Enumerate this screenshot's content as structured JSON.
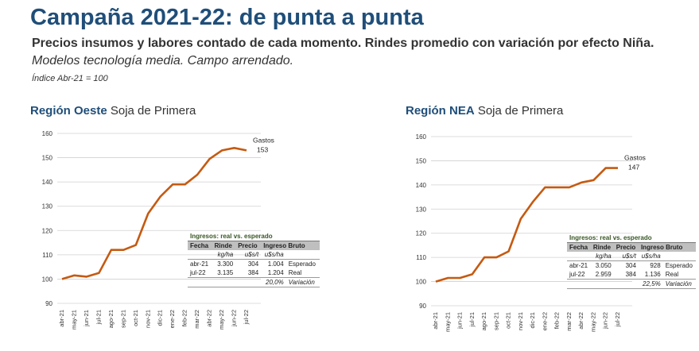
{
  "title": "Campaña 2021-22: de punta a punta",
  "subtitle": "Precios insumos y labores contado de cada momento. Rindes promedio con variación por efecto Niña.",
  "subtitle2": "Modelos tecnología media. Campo arrendado.",
  "index_note": "Índice Abr-21 = 100",
  "colors": {
    "title": "#1f4e79",
    "line": "#c55a11",
    "table_caption": "#375623",
    "table_header": "#bfbfbf"
  },
  "regions": [
    {
      "region_bold": "Región Oeste",
      "region_rest": " Soja de Primera",
      "table": {
        "caption": "Ingresos: real vs. esperado",
        "headers": [
          "Fecha",
          "Rinde",
          "Precio",
          "Ingreso Bruto"
        ],
        "units": [
          "",
          "kg/ha",
          "u$s/t",
          "u$s/ha"
        ],
        "rows": [
          [
            "abr-21",
            "3.300",
            "304",
            "1.004",
            "Esperado"
          ],
          [
            "jul-22",
            "3.135",
            "384",
            "1.204",
            "Real"
          ]
        ],
        "variation": [
          "20,0%",
          "Variación"
        ]
      }
    },
    {
      "region_bold": "Región NEA",
      "region_rest": " Soja de Primera",
      "table": {
        "caption": "Ingresos: real vs. esperado",
        "headers": [
          "Fecha",
          "Rinde",
          "Precio",
          "Ingreso Bruto"
        ],
        "units": [
          "",
          "kg/ha",
          "u$s/t",
          "u$s/ha"
        ],
        "rows": [
          [
            "abr-21",
            "3.050",
            "304",
            "928",
            "Esperado"
          ],
          [
            "jul-22",
            "2.959",
            "384",
            "1.136",
            "Real"
          ]
        ],
        "variation": [
          "22,5%",
          "Variación"
        ]
      }
    }
  ],
  "chart_data": [
    {
      "type": "line",
      "title": "Región Oeste Soja de Primera",
      "x": [
        "abr-21",
        "may-21",
        "jun-21",
        "jul-21",
        "ago-21",
        "sep-21",
        "oct-21",
        "nov-21",
        "dic-21",
        "ene-22",
        "feb-22",
        "mar-22",
        "abr-22",
        "may-22",
        "jun-22",
        "jul-22"
      ],
      "series": [
        {
          "name": "Gastos",
          "values": [
            100,
            101.5,
            101,
            102.5,
            112,
            112,
            114,
            127,
            134,
            139,
            139,
            143,
            149.5,
            153,
            154,
            153
          ]
        }
      ],
      "end_label": {
        "name": "Gastos",
        "value": "153"
      },
      "ylim": [
        90,
        160
      ],
      "yticks": [
        90,
        100,
        110,
        120,
        130,
        140,
        150,
        160
      ],
      "grid": true
    },
    {
      "type": "line",
      "title": "Región NEA Soja de Primera",
      "x": [
        "abr-21",
        "may-21",
        "jun-21",
        "jul-21",
        "ago-21",
        "sep-21",
        "oct-21",
        "nov-21",
        "dic-21",
        "ene-22",
        "feb-22",
        "mar-22",
        "abr-22",
        "may-22",
        "jun-22",
        "jul-22"
      ],
      "series": [
        {
          "name": "Gastos",
          "values": [
            100,
            101.5,
            101.5,
            103,
            110,
            110,
            112.5,
            126,
            133,
            139,
            139,
            139,
            141,
            142,
            147,
            147
          ]
        }
      ],
      "end_label": {
        "name": "Gastos",
        "value": "147"
      },
      "ylim": [
        90,
        160
      ],
      "yticks": [
        90,
        100,
        110,
        120,
        130,
        140,
        150,
        160
      ],
      "grid": true
    }
  ]
}
